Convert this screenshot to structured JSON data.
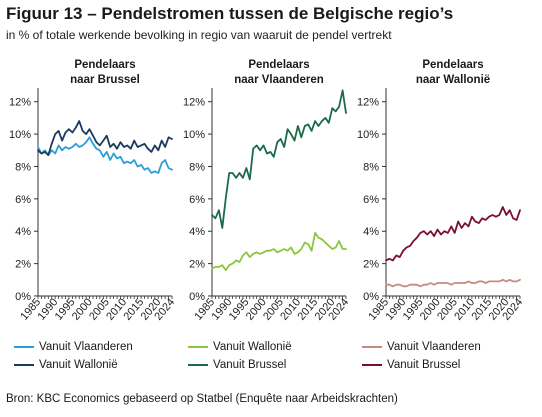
{
  "title": "Figuur 13 – Pendelstromen tussen de Belgische regio’s",
  "subtitle": "in % of totale werkende bevolking in regio van waaruit de pendel vertrekt",
  "source": "Bron: KBC Economics gebaseerd op Statbel (Enquête naar Arbeidskrachten)",
  "colors": {
    "vl_to_bxl": "#2a9fd6",
    "wal_to_bxl": "#1c3a5e",
    "wal_to_vl": "#8cc63f",
    "bxl_to_vl": "#1a6b4a",
    "vl_to_wal": "#c98a80",
    "bxl_to_wal": "#7a0f2e"
  },
  "chart_data": [
    {
      "type": "line",
      "title_lines": [
        "Pendelaars",
        "naar Brussel"
      ],
      "x_ticks": [
        "1985",
        "1990",
        "1995",
        "2000",
        "2005",
        "2010",
        "2015",
        "2020",
        "2024"
      ],
      "y_ticks": [
        "0%",
        "2%",
        "4%",
        "6%",
        "8%",
        "10%",
        "12%"
      ],
      "ylim": [
        0,
        12.6
      ],
      "xlim": [
        1985,
        2024
      ],
      "series": [
        {
          "name": "Vanuit Vlaanderen",
          "color_key": "vl_to_bxl",
          "x": [
            1985,
            1986,
            1987,
            1988,
            1989,
            1990,
            1991,
            1992,
            1993,
            1994,
            1995,
            1996,
            1997,
            1998,
            1999,
            2000,
            2001,
            2002,
            2003,
            2004,
            2005,
            2006,
            2007,
            2008,
            2009,
            2010,
            2011,
            2012,
            2013,
            2014,
            2015,
            2016,
            2017,
            2018,
            2019,
            2020,
            2021,
            2022,
            2023,
            2024
          ],
          "y": [
            9.2,
            8.8,
            9.0,
            8.7,
            9.0,
            8.8,
            9.3,
            9.0,
            9.2,
            9.1,
            9.2,
            9.4,
            9.2,
            9.3,
            9.5,
            9.8,
            9.4,
            9.1,
            9.0,
            8.6,
            8.9,
            8.4,
            8.8,
            8.5,
            8.6,
            8.2,
            8.3,
            8.2,
            8.4,
            8.0,
            8.1,
            7.8,
            7.9,
            7.6,
            7.7,
            7.6,
            8.2,
            8.4,
            7.9,
            7.8
          ]
        },
        {
          "name": "Vanuit Wallonië",
          "color_key": "wal_to_bxl",
          "x": [
            1985,
            1986,
            1987,
            1988,
            1989,
            1990,
            1991,
            1992,
            1993,
            1994,
            1995,
            1996,
            1997,
            1998,
            1999,
            2000,
            2001,
            2002,
            2003,
            2004,
            2005,
            2006,
            2007,
            2008,
            2009,
            2010,
            2011,
            2012,
            2013,
            2014,
            2015,
            2016,
            2017,
            2018,
            2019,
            2020,
            2021,
            2022,
            2023,
            2024
          ],
          "y": [
            9.0,
            8.8,
            8.9,
            8.7,
            9.4,
            10.0,
            10.2,
            9.6,
            10.1,
            10.3,
            10.1,
            10.4,
            10.8,
            10.2,
            10.0,
            10.3,
            9.9,
            9.5,
            9.3,
            9.6,
            9.9,
            9.2,
            9.4,
            9.1,
            9.5,
            9.2,
            9.3,
            9.1,
            9.6,
            9.2,
            9.3,
            9.4,
            9.1,
            8.9,
            9.3,
            9.0,
            9.6,
            9.2,
            9.8,
            9.7
          ]
        }
      ]
    },
    {
      "type": "line",
      "title_lines": [
        "Pendelaars",
        "naar Vlaanderen"
      ],
      "x_ticks": [
        "1985",
        "1990",
        "1995",
        "2000",
        "2005",
        "2010",
        "2015",
        "2020",
        "2024"
      ],
      "y_ticks": [
        "0%",
        "2%",
        "4%",
        "6%",
        "8%",
        "10%",
        "12%"
      ],
      "ylim": [
        0,
        12.6
      ],
      "xlim": [
        1985,
        2024
      ],
      "series": [
        {
          "name": "Vanuit Wallonië",
          "color_key": "wal_to_vl",
          "x": [
            1985,
            1986,
            1987,
            1988,
            1989,
            1990,
            1991,
            1992,
            1993,
            1994,
            1995,
            1996,
            1997,
            1998,
            1999,
            2000,
            2001,
            2002,
            2003,
            2004,
            2005,
            2006,
            2007,
            2008,
            2009,
            2010,
            2011,
            2012,
            2013,
            2014,
            2015,
            2016,
            2017,
            2018,
            2019,
            2020,
            2021,
            2022,
            2023,
            2024
          ],
          "y": [
            1.7,
            1.8,
            1.8,
            1.9,
            1.6,
            1.9,
            2.0,
            2.2,
            2.1,
            2.5,
            2.7,
            2.4,
            2.6,
            2.7,
            2.6,
            2.7,
            2.8,
            2.8,
            2.9,
            2.7,
            2.8,
            2.9,
            2.8,
            3.0,
            2.6,
            2.7,
            2.9,
            3.3,
            3.2,
            2.8,
            3.9,
            3.6,
            3.5,
            3.3,
            3.1,
            2.9,
            3.0,
            3.4,
            2.9,
            2.9
          ]
        },
        {
          "name": "Vanuit Brussel",
          "color_key": "bxl_to_vl",
          "x": [
            1985,
            1986,
            1987,
            1988,
            1989,
            1990,
            1991,
            1992,
            1993,
            1994,
            1995,
            1996,
            1997,
            1998,
            1999,
            2000,
            2001,
            2002,
            2003,
            2004,
            2005,
            2006,
            2007,
            2008,
            2009,
            2010,
            2011,
            2012,
            2013,
            2014,
            2015,
            2016,
            2017,
            2018,
            2019,
            2020,
            2021,
            2022,
            2023,
            2024
          ],
          "y": [
            5.0,
            4.8,
            5.3,
            4.2,
            6.0,
            7.6,
            7.6,
            7.3,
            7.6,
            7.3,
            7.9,
            7.2,
            9.1,
            9.3,
            9.0,
            9.3,
            8.8,
            8.9,
            8.6,
            9.5,
            9.7,
            9.2,
            10.3,
            10.0,
            9.6,
            10.5,
            9.8,
            10.5,
            10.6,
            10.2,
            10.8,
            10.5,
            10.8,
            11.0,
            10.7,
            11.6,
            11.4,
            11.7,
            12.7,
            11.3
          ]
        }
      ]
    },
    {
      "type": "line",
      "title_lines": [
        "Pendelaars",
        "naar Wallonië"
      ],
      "x_ticks": [
        "1985",
        "1990",
        "1995",
        "2000",
        "2005",
        "2010",
        "2015",
        "2020",
        "2024"
      ],
      "y_ticks": [
        "0%",
        "2%",
        "4%",
        "6%",
        "8%",
        "10%",
        "12%"
      ],
      "ylim": [
        0,
        12.6
      ],
      "xlim": [
        1985,
        2024
      ],
      "series": [
        {
          "name": "Vanuit Vlaanderen",
          "color_key": "vl_to_wal",
          "x": [
            1985,
            1986,
            1987,
            1988,
            1989,
            1990,
            1991,
            1992,
            1993,
            1994,
            1995,
            1996,
            1997,
            1998,
            1999,
            2000,
            2001,
            2002,
            2003,
            2004,
            2005,
            2006,
            2007,
            2008,
            2009,
            2010,
            2011,
            2012,
            2013,
            2014,
            2015,
            2016,
            2017,
            2018,
            2019,
            2020,
            2021,
            2022,
            2023,
            2024
          ],
          "y": [
            0.7,
            0.7,
            0.6,
            0.7,
            0.7,
            0.6,
            0.6,
            0.7,
            0.7,
            0.7,
            0.6,
            0.7,
            0.7,
            0.8,
            0.7,
            0.8,
            0.8,
            0.8,
            0.8,
            0.7,
            0.8,
            0.8,
            0.8,
            0.8,
            0.9,
            0.8,
            0.8,
            0.9,
            0.9,
            0.8,
            0.9,
            0.9,
            0.9,
            0.9,
            1.0,
            0.9,
            1.0,
            0.9,
            0.9,
            1.0
          ]
        },
        {
          "name": "Vanuit Brussel",
          "color_key": "bxl_to_wal",
          "x": [
            1985,
            1986,
            1987,
            1988,
            1989,
            1990,
            1991,
            1992,
            1993,
            1994,
            1995,
            1996,
            1997,
            1998,
            1999,
            2000,
            2001,
            2002,
            2003,
            2004,
            2005,
            2006,
            2007,
            2008,
            2009,
            2010,
            2011,
            2012,
            2013,
            2014,
            2015,
            2016,
            2017,
            2018,
            2019,
            2020,
            2021,
            2022,
            2023,
            2024
          ],
          "y": [
            2.2,
            2.3,
            2.2,
            2.5,
            2.4,
            2.8,
            3.0,
            3.1,
            3.4,
            3.6,
            3.9,
            4.0,
            3.8,
            4.0,
            3.7,
            4.1,
            3.8,
            4.0,
            3.9,
            4.3,
            3.9,
            4.6,
            4.2,
            4.5,
            4.3,
            4.9,
            4.6,
            4.5,
            4.8,
            4.7,
            4.9,
            5.0,
            4.9,
            5.0,
            5.5,
            5.0,
            5.3,
            4.8,
            4.7,
            5.3
          ]
        }
      ]
    }
  ]
}
